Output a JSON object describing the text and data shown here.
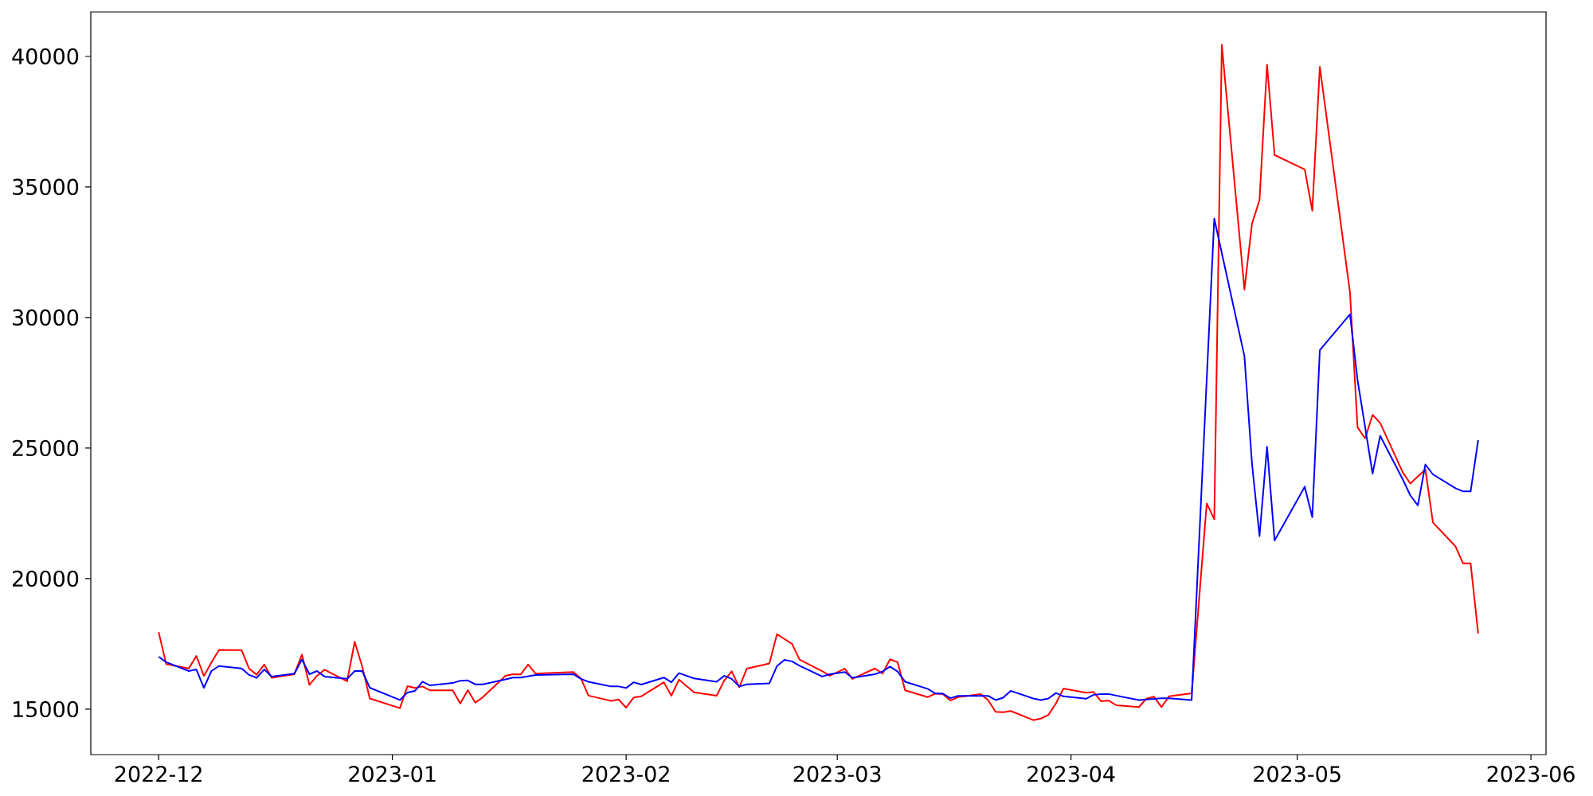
{
  "chart_data": {
    "type": "line",
    "xlim": [
      "2022-11-22",
      "2023-06-03"
    ],
    "ylim": [
      13260,
      41700
    ],
    "xticks": [
      "2022-12",
      "2023-01",
      "2023-02",
      "2023-03",
      "2023-04",
      "2023-05",
      "2023-06"
    ],
    "yticks": [
      15000,
      20000,
      25000,
      30000,
      35000,
      40000
    ],
    "series": [
      {
        "color": "#ff0000",
        "x": [
          "2022-12-01",
          "2022-12-02",
          "2022-12-05",
          "2022-12-06",
          "2022-12-07",
          "2022-12-08",
          "2022-12-09",
          "2022-12-12",
          "2022-12-13",
          "2022-12-14",
          "2022-12-15",
          "2022-12-16",
          "2022-12-19",
          "2022-12-20",
          "2022-12-21",
          "2022-12-22",
          "2022-12-23",
          "2022-12-26",
          "2022-12-27",
          "2022-12-28",
          "2022-12-29",
          "2023-01-02",
          "2023-01-03",
          "2023-01-04",
          "2023-01-05",
          "2023-01-06",
          "2023-01-09",
          "2023-01-10",
          "2023-01-11",
          "2023-01-12",
          "2023-01-13",
          "2023-01-16",
          "2023-01-17",
          "2023-01-18",
          "2023-01-19",
          "2023-01-20",
          "2023-01-25",
          "2023-01-26",
          "2023-01-27",
          "2023-01-30",
          "2023-01-31",
          "2023-02-01",
          "2023-02-02",
          "2023-02-03",
          "2023-02-06",
          "2023-02-07",
          "2023-02-08",
          "2023-02-10",
          "2023-02-13",
          "2023-02-14",
          "2023-02-15",
          "2023-02-16",
          "2023-02-17",
          "2023-02-20",
          "2023-02-21",
          "2023-02-23",
          "2023-02-24",
          "2023-02-27",
          "2023-02-28",
          "2023-03-02",
          "2023-03-03",
          "2023-03-06",
          "2023-03-07",
          "2023-03-08",
          "2023-03-09",
          "2023-03-10",
          "2023-03-13",
          "2023-03-14",
          "2023-03-15",
          "2023-03-16",
          "2023-03-17",
          "2023-03-20",
          "2023-03-21",
          "2023-03-22",
          "2023-03-23",
          "2023-03-24",
          "2023-03-27",
          "2023-03-28",
          "2023-03-29",
          "2023-03-30",
          "2023-03-31",
          "2023-04-03",
          "2023-04-04",
          "2023-04-05",
          "2023-04-06",
          "2023-04-07",
          "2023-04-10",
          "2023-04-11",
          "2023-04-12",
          "2023-04-13",
          "2023-04-14",
          "2023-04-17",
          "2023-04-19",
          "2023-04-20",
          "2023-04-21",
          "2023-04-24",
          "2023-04-25",
          "2023-04-26",
          "2023-04-27",
          "2023-04-28",
          "2023-05-02",
          "2023-05-03",
          "2023-05-04",
          "2023-05-08",
          "2023-05-09",
          "2023-05-10",
          "2023-05-11",
          "2023-05-12",
          "2023-05-15",
          "2023-05-16",
          "2023-05-18",
          "2023-05-19",
          "2023-05-22",
          "2023-05-23",
          "2023-05-24",
          "2023-05-25"
        ],
        "values": [
          17950,
          16730,
          16560,
          17040,
          16270,
          16790,
          17270,
          17260,
          16550,
          16320,
          16710,
          16200,
          16340,
          17090,
          15930,
          16280,
          16510,
          16070,
          17580,
          16630,
          15410,
          15040,
          15880,
          15810,
          15870,
          15720,
          15720,
          15220,
          15730,
          15250,
          15460,
          16280,
          16340,
          16330,
          16710,
          16360,
          16420,
          16180,
          15520,
          15320,
          15370,
          15060,
          15445,
          15490,
          16030,
          15515,
          16130,
          15645,
          15515,
          16090,
          16450,
          15840,
          16550,
          16750,
          17870,
          17500,
          16900,
          16460,
          16280,
          16550,
          16160,
          16560,
          16360,
          16910,
          16800,
          15720,
          15460,
          15600,
          15580,
          15330,
          15460,
          15580,
          15350,
          14900,
          14880,
          14930,
          14580,
          14640,
          14780,
          15220,
          15790,
          15630,
          15660,
          15300,
          15330,
          15150,
          15080,
          15400,
          15480,
          15080,
          15490,
          15610,
          22880,
          22270,
          40440,
          31070,
          33580,
          34500,
          39680,
          36220,
          35670,
          34090,
          39600,
          30960,
          25790,
          25370,
          26270,
          25960,
          24070,
          23640,
          24180,
          22150,
          21230,
          20580,
          20580,
          17900
        ]
      },
      {
        "color": "#0000ff",
        "x": [
          "2022-12-01",
          "2022-12-02",
          "2022-12-05",
          "2022-12-06",
          "2022-12-07",
          "2022-12-08",
          "2022-12-09",
          "2022-12-12",
          "2022-12-13",
          "2022-12-14",
          "2022-12-15",
          "2022-12-16",
          "2022-12-19",
          "2022-12-20",
          "2022-12-21",
          "2022-12-22",
          "2022-12-23",
          "2022-12-26",
          "2022-12-27",
          "2022-12-28",
          "2022-12-29",
          "2023-01-02",
          "2023-01-03",
          "2023-01-04",
          "2023-01-05",
          "2023-01-06",
          "2023-01-09",
          "2023-01-10",
          "2023-01-11",
          "2023-01-12",
          "2023-01-13",
          "2023-01-16",
          "2023-01-17",
          "2023-01-18",
          "2023-01-20",
          "2023-01-25",
          "2023-01-26",
          "2023-01-27",
          "2023-01-30",
          "2023-01-31",
          "2023-02-01",
          "2023-02-02",
          "2023-02-03",
          "2023-02-06",
          "2023-02-07",
          "2023-02-08",
          "2023-02-10",
          "2023-02-13",
          "2023-02-14",
          "2023-02-15",
          "2023-02-16",
          "2023-02-17",
          "2023-02-20",
          "2023-02-21",
          "2023-02-22",
          "2023-02-23",
          "2023-02-24",
          "2023-02-27",
          "2023-02-28",
          "2023-03-02",
          "2023-03-03",
          "2023-03-06",
          "2023-03-07",
          "2023-03-08",
          "2023-03-09",
          "2023-03-10",
          "2023-03-13",
          "2023-03-14",
          "2023-03-15",
          "2023-03-16",
          "2023-03-17",
          "2023-03-20",
          "2023-03-21",
          "2023-03-22",
          "2023-03-23",
          "2023-03-24",
          "2023-03-27",
          "2023-03-28",
          "2023-03-29",
          "2023-03-30",
          "2023-03-31",
          "2023-04-03",
          "2023-04-04",
          "2023-04-05",
          "2023-04-06",
          "2023-04-07",
          "2023-04-10",
          "2023-04-11",
          "2023-04-13",
          "2023-04-14",
          "2023-04-17",
          "2023-04-20",
          "2023-04-24",
          "2023-04-25",
          "2023-04-26",
          "2023-04-27",
          "2023-04-28",
          "2023-05-02",
          "2023-05-03",
          "2023-05-04",
          "2023-05-08",
          "2023-05-09",
          "2023-05-11",
          "2023-05-12",
          "2023-05-15",
          "2023-05-16",
          "2023-05-17",
          "2023-05-18",
          "2023-05-19",
          "2023-05-22",
          "2023-05-23",
          "2023-05-24",
          "2023-05-25"
        ],
        "values": [
          17010,
          16800,
          16460,
          16520,
          15820,
          16460,
          16650,
          16560,
          16310,
          16200,
          16520,
          16250,
          16360,
          16900,
          16340,
          16460,
          16250,
          16160,
          16460,
          16460,
          15820,
          15350,
          15640,
          15700,
          16050,
          15910,
          16000,
          16090,
          16100,
          15950,
          15950,
          16140,
          16210,
          16210,
          16310,
          16340,
          16160,
          16050,
          15870,
          15870,
          15810,
          16030,
          15940,
          16210,
          16030,
          16380,
          16180,
          16050,
          16280,
          16160,
          15870,
          15950,
          15990,
          16650,
          16890,
          16830,
          16660,
          16250,
          16340,
          16420,
          16200,
          16340,
          16440,
          16630,
          16440,
          16050,
          15780,
          15600,
          15600,
          15420,
          15510,
          15510,
          15510,
          15350,
          15440,
          15700,
          15410,
          15350,
          15410,
          15620,
          15490,
          15400,
          15550,
          15580,
          15580,
          15520,
          15350,
          15370,
          15420,
          15420,
          15350,
          33780,
          28520,
          24410,
          21630,
          25050,
          21460,
          23520,
          22350,
          28750,
          30120,
          27610,
          24020,
          25470,
          23800,
          23190,
          22800,
          24370,
          23990,
          23460,
          23340,
          23340,
          25300
        ]
      }
    ]
  }
}
